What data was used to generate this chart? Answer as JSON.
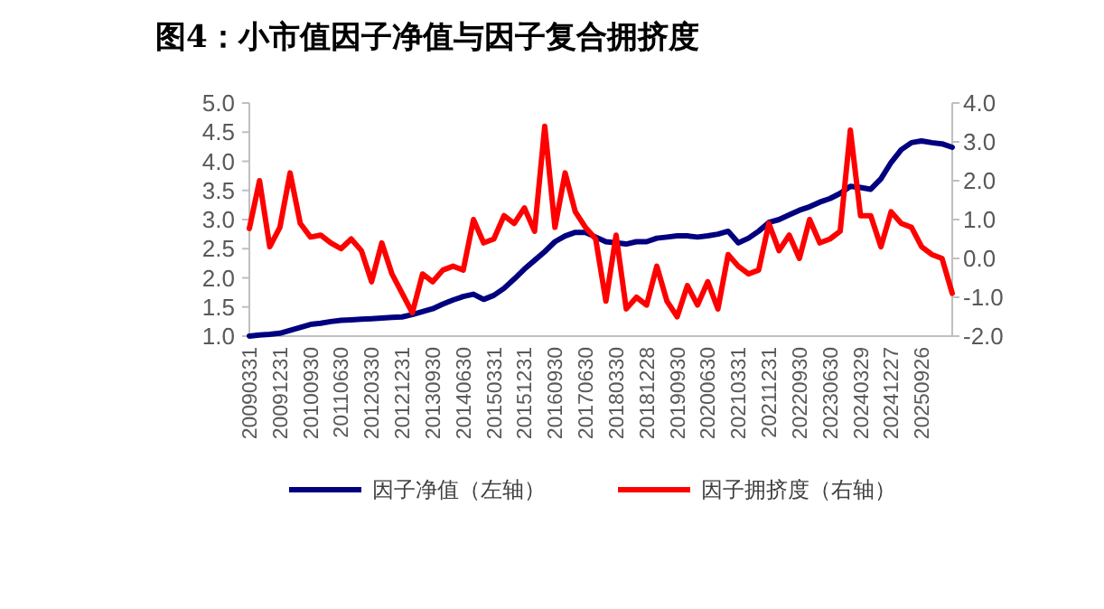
{
  "chart_data": {
    "type": "line",
    "title": "图4：小市值因子净值与因子复合拥挤度",
    "categories": [
      "20090331",
      null,
      null,
      "20091231",
      null,
      null,
      "20100930",
      null,
      null,
      "20110630",
      null,
      null,
      "20120330",
      null,
      null,
      "20121231",
      null,
      null,
      "20130930",
      null,
      null,
      "20140630",
      null,
      null,
      "20150331",
      null,
      null,
      "20151231",
      null,
      null,
      "20160930",
      null,
      null,
      "20170630",
      null,
      null,
      "20180330",
      null,
      null,
      "20181228",
      null,
      null,
      "20190930",
      null,
      null,
      "20200630",
      null,
      null,
      "20210331",
      null,
      null,
      "20211231",
      null,
      null,
      "20220930",
      null,
      null,
      "20230630",
      null,
      null,
      "20240329",
      null,
      null,
      "20241227",
      null,
      null,
      "20250926",
      null,
      null,
      null
    ],
    "series": [
      {
        "name": "因子净值（左轴）",
        "color": "#00007f",
        "values": [
          1.0,
          1.02,
          1.03,
          1.05,
          1.1,
          1.15,
          1.2,
          1.22,
          1.25,
          1.27,
          1.28,
          1.29,
          1.3,
          1.31,
          1.32,
          1.33,
          1.37,
          1.42,
          1.47,
          1.55,
          1.62,
          1.68,
          1.72,
          1.63,
          1.7,
          1.82,
          1.98,
          2.15,
          2.3,
          2.45,
          2.62,
          2.72,
          2.78,
          2.78,
          2.7,
          2.62,
          2.6,
          2.58,
          2.62,
          2.62,
          2.68,
          2.7,
          2.72,
          2.72,
          2.7,
          2.72,
          2.75,
          2.8,
          2.6,
          2.68,
          2.8,
          2.95,
          3.0,
          3.08,
          3.16,
          3.22,
          3.3,
          3.36,
          3.45,
          3.57,
          3.55,
          3.52,
          3.7,
          3.98,
          4.2,
          4.32,
          4.35,
          4.32,
          4.3,
          4.24
        ]
      },
      {
        "name": "因子拥挤度（右轴）",
        "color": "#ff0000",
        "axis": "y2",
        "values": [
          0.77,
          2.0,
          0.3,
          0.8,
          2.2,
          0.9,
          0.55,
          0.6,
          0.4,
          0.25,
          0.5,
          0.2,
          -0.6,
          0.4,
          -0.4,
          -0.9,
          -1.4,
          -0.4,
          -0.6,
          -0.3,
          -0.2,
          -0.3,
          1.0,
          0.4,
          0.5,
          1.1,
          0.9,
          1.3,
          0.7,
          3.4,
          0.8,
          2.2,
          1.2,
          0.8,
          0.5,
          -1.1,
          0.6,
          -1.3,
          -1.0,
          -1.2,
          -0.2,
          -1.1,
          -1.5,
          -0.7,
          -1.2,
          -0.6,
          -1.3,
          0.1,
          -0.2,
          -0.4,
          -0.3,
          0.9,
          0.2,
          0.6,
          0.0,
          1.0,
          0.4,
          0.5,
          0.7,
          3.3,
          1.1,
          1.1,
          0.3,
          1.2,
          0.9,
          0.8,
          0.3,
          0.1,
          0.0,
          -0.9
        ]
      }
    ],
    "ylim": [
      1,
      5
    ],
    "yticks": [
      {
        "value": 1,
        "label": "1.0"
      },
      {
        "value": 1.5,
        "label": "1.5"
      },
      {
        "value": 2,
        "label": "2.0"
      },
      {
        "value": 2.5,
        "label": "2.5"
      },
      {
        "value": 3,
        "label": "3.0"
      },
      {
        "value": 3.5,
        "label": "3.5"
      },
      {
        "value": 4,
        "label": "4.0"
      },
      {
        "value": 4.5,
        "label": "4.5"
      },
      {
        "value": 5,
        "label": "5.0"
      }
    ],
    "y2lim": [
      -2,
      4
    ],
    "y2ticks": [
      {
        "value": -2,
        "label": "-2.0"
      },
      {
        "value": -1,
        "label": "-1.0"
      },
      {
        "value": 0,
        "label": "0.0"
      },
      {
        "value": 1,
        "label": "1.0"
      },
      {
        "value": 2,
        "label": "2.0"
      },
      {
        "value": 3,
        "label": "3.0"
      },
      {
        "value": 4,
        "label": "4.0"
      }
    ],
    "legend": "bottom"
  }
}
